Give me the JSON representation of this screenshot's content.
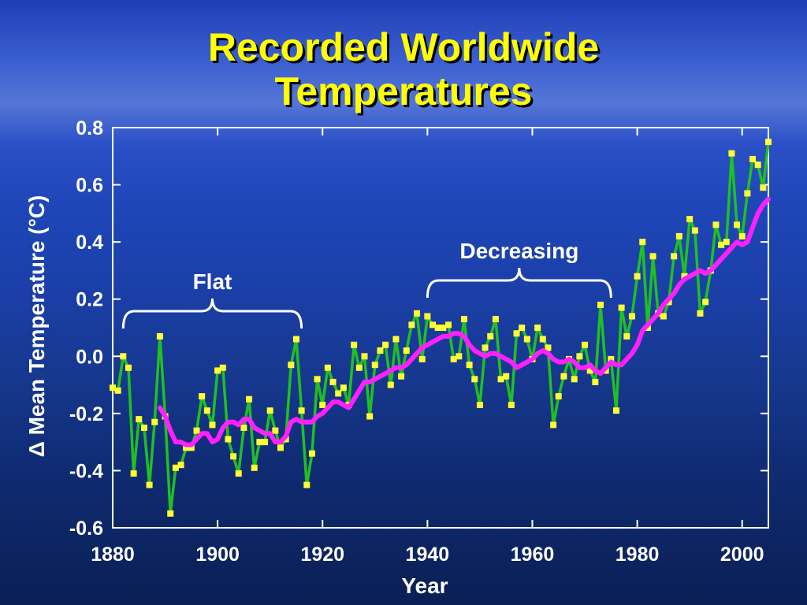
{
  "slide": {
    "title_line1": "Recorded Worldwide",
    "title_line2": "Temperatures"
  },
  "colors": {
    "title": "#ffff00",
    "annual_line": "#20c020",
    "annual_marker": "#ffff33",
    "smoothed_line": "#ff20ff",
    "axes": "#ffffff"
  },
  "chart_data": {
    "type": "line",
    "title": "Recorded Worldwide Temperatures",
    "xlabel": "Year",
    "ylabel": "Δ Mean Temperature (°C)",
    "xlim": [
      1880,
      2005
    ],
    "ylim": [
      -0.6,
      0.8
    ],
    "x_ticks": [
      1880,
      1900,
      1920,
      1940,
      1960,
      1980,
      2000
    ],
    "y_ticks": [
      -0.6,
      -0.4,
      -0.2,
      0.0,
      0.2,
      0.4,
      0.6,
      0.8
    ],
    "x_tick_labels": [
      "1880",
      "1900",
      "1920",
      "1940",
      "1960",
      "1980",
      "2000"
    ],
    "y_tick_labels": [
      "-0.6",
      "-0.4",
      "-0.2",
      "0.0",
      "0.2",
      "0.4",
      "0.6",
      "0.8"
    ],
    "grid": false,
    "annotations": [
      {
        "text": "Flat",
        "x_start": 1882,
        "x_end": 1916
      },
      {
        "text": "Decreasing",
        "x_start": 1940,
        "x_end": 1975
      }
    ],
    "series": [
      {
        "style": "line-with-markers",
        "x": [
          1880,
          1881,
          1882,
          1883,
          1884,
          1885,
          1886,
          1887,
          1888,
          1889,
          1890,
          1891,
          1892,
          1893,
          1894,
          1895,
          1896,
          1897,
          1898,
          1899,
          1900,
          1901,
          1902,
          1903,
          1904,
          1905,
          1906,
          1907,
          1908,
          1909,
          1910,
          1911,
          1912,
          1913,
          1914,
          1915,
          1916,
          1917,
          1918,
          1919,
          1920,
          1921,
          1922,
          1923,
          1924,
          1925,
          1926,
          1927,
          1928,
          1929,
          1930,
          1931,
          1932,
          1933,
          1934,
          1935,
          1936,
          1937,
          1938,
          1939,
          1940,
          1941,
          1942,
          1943,
          1944,
          1945,
          1946,
          1947,
          1948,
          1949,
          1950,
          1951,
          1952,
          1953,
          1954,
          1955,
          1956,
          1957,
          1958,
          1959,
          1960,
          1961,
          1962,
          1963,
          1964,
          1965,
          1966,
          1967,
          1968,
          1969,
          1970,
          1971,
          1972,
          1973,
          1974,
          1975,
          1976,
          1977,
          1978,
          1979,
          1980,
          1981,
          1982,
          1983,
          1984,
          1985,
          1986,
          1987,
          1988,
          1989,
          1990,
          1991,
          1992,
          1993,
          1994,
          1995,
          1996,
          1997,
          1998,
          1999,
          2000,
          2001,
          2002,
          2003,
          2004,
          2005
        ],
        "y": [
          -0.11,
          -0.12,
          0.0,
          -0.04,
          -0.41,
          -0.22,
          -0.25,
          -0.45,
          -0.23,
          0.07,
          -0.21,
          -0.55,
          -0.39,
          -0.38,
          -0.32,
          -0.32,
          -0.26,
          -0.14,
          -0.19,
          -0.24,
          -0.05,
          -0.04,
          -0.29,
          -0.35,
          -0.41,
          -0.25,
          -0.15,
          -0.39,
          -0.3,
          -0.3,
          -0.19,
          -0.26,
          -0.32,
          -0.29,
          -0.03,
          0.06,
          -0.19,
          -0.45,
          -0.34,
          -0.08,
          -0.17,
          -0.04,
          -0.09,
          -0.13,
          -0.11,
          -0.17,
          0.04,
          -0.04,
          0.0,
          -0.21,
          -0.03,
          0.02,
          0.04,
          -0.1,
          0.06,
          -0.07,
          0.02,
          0.11,
          0.15,
          -0.01,
          0.14,
          0.11,
          0.1,
          0.1,
          0.11,
          -0.01,
          0.0,
          0.13,
          -0.03,
          -0.08,
          -0.17,
          0.03,
          0.07,
          0.13,
          -0.08,
          -0.07,
          -0.17,
          0.08,
          0.1,
          0.06,
          -0.01,
          0.1,
          0.06,
          0.03,
          -0.24,
          -0.14,
          -0.07,
          -0.01,
          -0.08,
          0.0,
          0.04,
          -0.05,
          -0.09,
          0.18,
          -0.05,
          -0.01,
          -0.19,
          0.17,
          0.07,
          0.14,
          0.28,
          0.4,
          0.1,
          0.35,
          0.15,
          0.14,
          0.19,
          0.35,
          0.42,
          0.28,
          0.48,
          0.44,
          0.15,
          0.19,
          0.3,
          0.46,
          0.39,
          0.4,
          0.71,
          0.46,
          0.42,
          0.57,
          0.69,
          0.67,
          0.59,
          0.75
        ]
      },
      {
        "style": "smoothed-line",
        "x": [
          1889,
          1890,
          1891,
          1892,
          1893,
          1894,
          1895,
          1896,
          1897,
          1898,
          1899,
          1900,
          1901,
          1902,
          1903,
          1904,
          1905,
          1906,
          1907,
          1908,
          1909,
          1910,
          1911,
          1912,
          1913,
          1914,
          1915,
          1916,
          1917,
          1918,
          1919,
          1920,
          1921,
          1922,
          1923,
          1924,
          1925,
          1926,
          1927,
          1928,
          1929,
          1930,
          1931,
          1932,
          1933,
          1934,
          1935,
          1936,
          1937,
          1938,
          1939,
          1940,
          1941,
          1942,
          1943,
          1944,
          1945,
          1946,
          1947,
          1948,
          1949,
          1950,
          1951,
          1952,
          1953,
          1954,
          1955,
          1956,
          1957,
          1958,
          1959,
          1960,
          1961,
          1962,
          1963,
          1964,
          1965,
          1966,
          1967,
          1968,
          1969,
          1970,
          1971,
          1972,
          1973,
          1974,
          1975,
          1976,
          1977,
          1978,
          1979,
          1980,
          1981,
          1982,
          1983,
          1984,
          1985,
          1986,
          1987,
          1988,
          1989,
          1990,
          1991,
          1992,
          1993,
          1994,
          1995,
          1996,
          1997,
          1998,
          1999,
          2000,
          2001,
          2002,
          2003,
          2004,
          2005
        ],
        "y": [
          -0.18,
          -0.21,
          -0.26,
          -0.3,
          -0.3,
          -0.31,
          -0.31,
          -0.29,
          -0.27,
          -0.27,
          -0.3,
          -0.29,
          -0.25,
          -0.23,
          -0.23,
          -0.24,
          -0.22,
          -0.22,
          -0.25,
          -0.26,
          -0.27,
          -0.27,
          -0.3,
          -0.3,
          -0.28,
          -0.23,
          -0.22,
          -0.23,
          -0.23,
          -0.23,
          -0.21,
          -0.2,
          -0.18,
          -0.16,
          -0.16,
          -0.17,
          -0.18,
          -0.15,
          -0.12,
          -0.09,
          -0.09,
          -0.08,
          -0.07,
          -0.06,
          -0.05,
          -0.04,
          -0.04,
          -0.03,
          -0.01,
          0.01,
          0.03,
          0.04,
          0.05,
          0.06,
          0.07,
          0.07,
          0.08,
          0.08,
          0.07,
          0.04,
          0.02,
          0.01,
          0.0,
          0.01,
          0.01,
          0.0,
          -0.01,
          -0.02,
          -0.04,
          -0.03,
          -0.02,
          -0.01,
          0.01,
          0.02,
          0.01,
          -0.01,
          -0.02,
          -0.02,
          -0.01,
          -0.02,
          -0.04,
          -0.04,
          -0.03,
          -0.05,
          -0.06,
          -0.04,
          -0.02,
          -0.03,
          -0.03,
          -0.01,
          0.01,
          0.04,
          0.09,
          0.11,
          0.13,
          0.15,
          0.18,
          0.2,
          0.22,
          0.25,
          0.27,
          0.28,
          0.29,
          0.3,
          0.29,
          0.3,
          0.32,
          0.34,
          0.36,
          0.38,
          0.4,
          0.39,
          0.4,
          0.45,
          0.5,
          0.53,
          0.55
        ]
      }
    ]
  }
}
